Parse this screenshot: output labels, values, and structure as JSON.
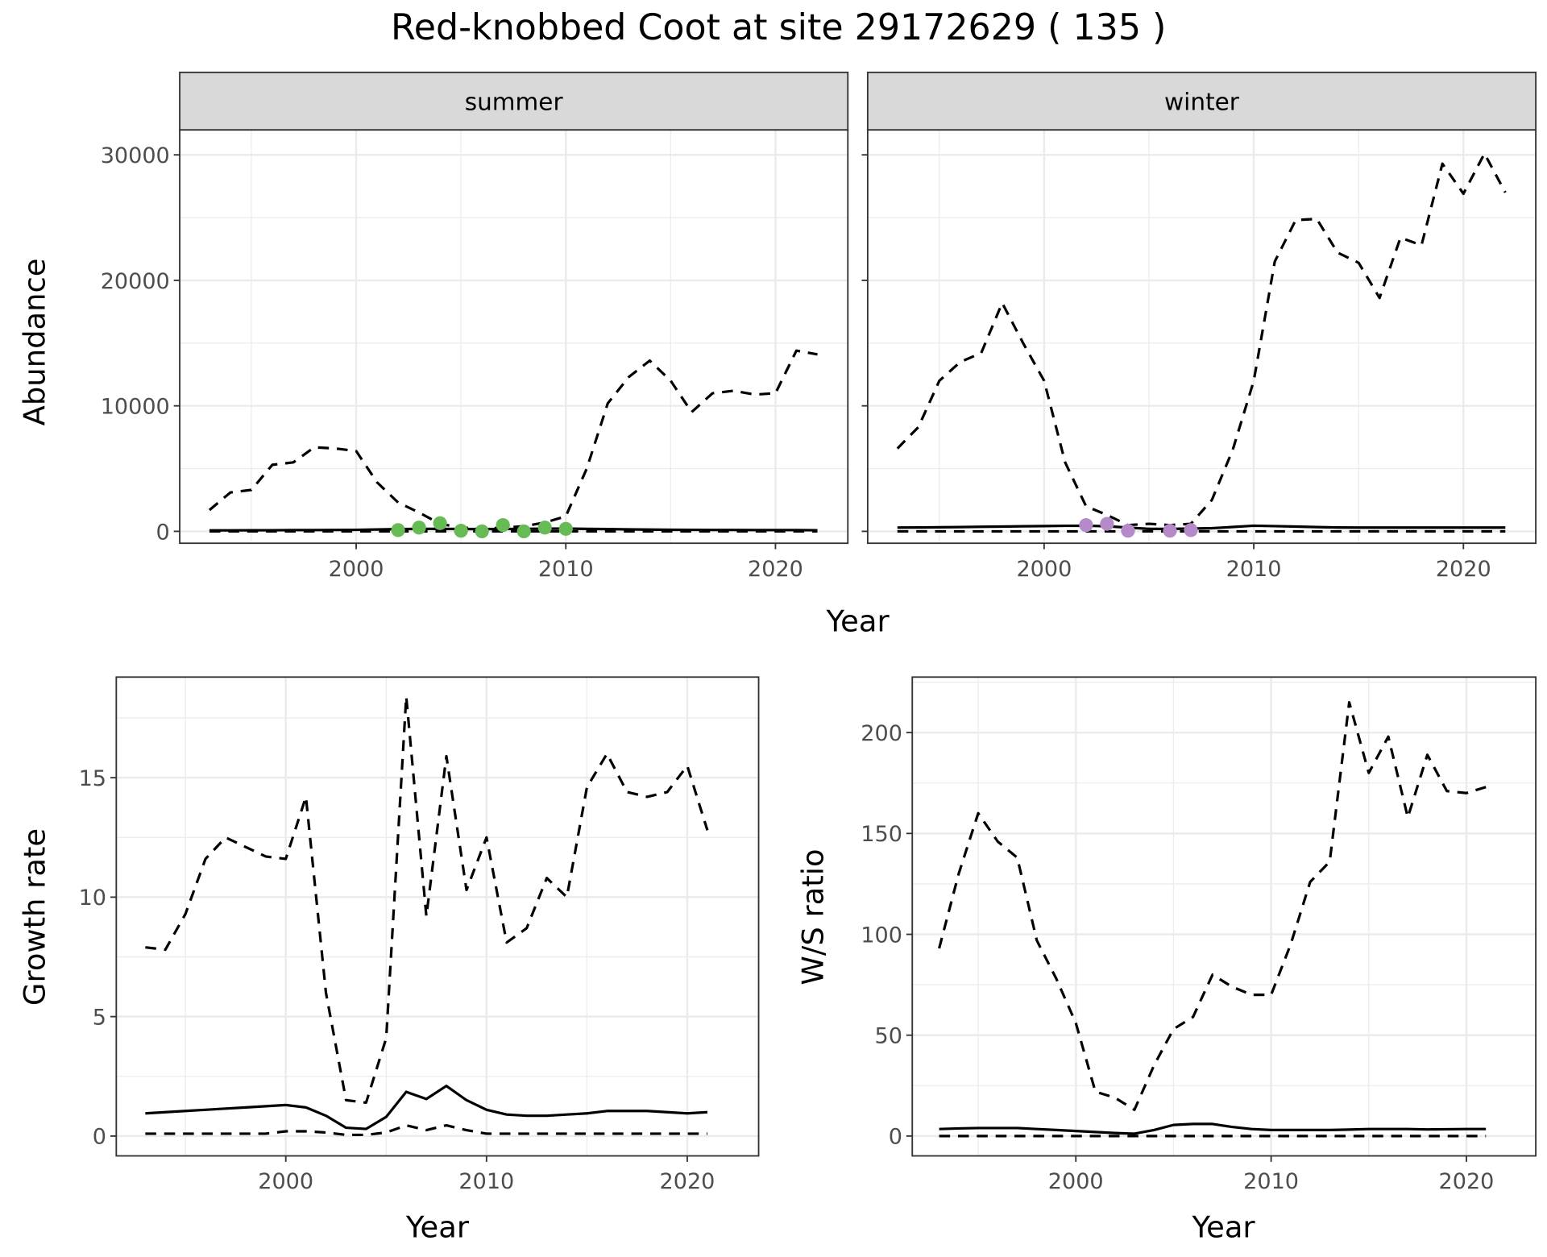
{
  "title": "Red-knobbed Coot at site 29172629 ( 135 )",
  "colors": {
    "summer_points": "#66bb55",
    "winter_points": "#b48ac8",
    "lines": "#000000",
    "strip": "#d9d9d9",
    "grid": "#ebebeb"
  },
  "chart_data": [
    {
      "type": "line",
      "facet": "summer",
      "xlabel": "Year",
      "ylabel": "Abundance",
      "xlim": [
        1993,
        2022
      ],
      "ylim": [
        0,
        30000
      ],
      "x_ticks": [
        2000,
        2010,
        2020
      ],
      "y_ticks": [
        0,
        10000,
        20000,
        30000
      ],
      "grid": true,
      "x": [
        1993,
        1994,
        1995,
        1996,
        1997,
        1998,
        1999,
        2000,
        2001,
        2002,
        2003,
        2004,
        2005,
        2006,
        2007,
        2008,
        2009,
        2010,
        2011,
        2012,
        2013,
        2014,
        2015,
        2016,
        2017,
        2018,
        2019,
        2020,
        2021,
        2022
      ],
      "series": [
        {
          "style": "dashed",
          "values": [
            1700,
            3100,
            3300,
            5300,
            5500,
            6700,
            6600,
            6400,
            3900,
            2300,
            1500,
            600,
            300,
            200,
            300,
            400,
            700,
            1200,
            5000,
            10200,
            12300,
            13600,
            12000,
            9500,
            11000,
            11200,
            10900,
            11000,
            14400,
            14100
          ]
        },
        {
          "style": "solid",
          "values": [
            80,
            80,
            90,
            90,
            100,
            100,
            110,
            120,
            150,
            180,
            200,
            200,
            190,
            180,
            190,
            200,
            210,
            220,
            200,
            180,
            160,
            140,
            130,
            120,
            110,
            110,
            100,
            100,
            100,
            90
          ]
        },
        {
          "style": "dashed",
          "values": [
            0,
            0,
            0,
            0,
            0,
            0,
            0,
            0,
            0,
            0,
            0,
            0,
            0,
            0,
            0,
            0,
            0,
            0,
            0,
            0,
            0,
            0,
            0,
            0,
            0,
            0,
            0,
            0,
            0,
            0
          ]
        }
      ],
      "points": {
        "x": [
          2002,
          2003,
          2004,
          2005,
          2006,
          2007,
          2008,
          2009,
          2010
        ],
        "y": [
          100,
          300,
          650,
          50,
          0,
          500,
          0,
          300,
          200
        ]
      }
    },
    {
      "type": "line",
      "facet": "winter",
      "xlabel": "Year",
      "ylabel": "Abundance",
      "xlim": [
        1993,
        2022
      ],
      "ylim": [
        0,
        30000
      ],
      "x_ticks": [
        2000,
        2010,
        2020
      ],
      "y_ticks": [
        0,
        10000,
        20000,
        30000
      ],
      "grid": true,
      "x": [
        1993,
        1994,
        1995,
        1996,
        1997,
        1998,
        1999,
        2000,
        2001,
        2002,
        2003,
        2004,
        2005,
        2006,
        2007,
        2008,
        2009,
        2010,
        2011,
        2012,
        2013,
        2014,
        2015,
        2016,
        2017,
        2018,
        2019,
        2020,
        2021,
        2022
      ],
      "series": [
        {
          "style": "dashed",
          "values": [
            6600,
            8300,
            12000,
            13500,
            14200,
            18200,
            15000,
            12000,
            5500,
            2000,
            1300,
            500,
            600,
            500,
            600,
            2500,
            6500,
            12000,
            21500,
            24800,
            24900,
            22200,
            21400,
            18600,
            23400,
            22800,
            29300,
            26900,
            30100,
            27000
          ]
        },
        {
          "style": "solid",
          "values": [
            300,
            310,
            320,
            340,
            360,
            380,
            400,
            420,
            440,
            450,
            400,
            300,
            200,
            200,
            220,
            250,
            350,
            450,
            420,
            380,
            340,
            310,
            300,
            300,
            300,
            300,
            300,
            300,
            300,
            300
          ]
        },
        {
          "style": "dashed",
          "values": [
            0,
            0,
            0,
            0,
            0,
            0,
            0,
            0,
            0,
            0,
            0,
            0,
            0,
            0,
            0,
            0,
            0,
            0,
            0,
            0,
            0,
            0,
            0,
            0,
            0,
            0,
            0,
            0,
            0,
            0
          ]
        }
      ],
      "points": {
        "x": [
          2002,
          2003,
          2004,
          2006,
          2007
        ],
        "y": [
          500,
          600,
          50,
          50,
          100
        ]
      }
    },
    {
      "type": "line",
      "xlabel": "Year",
      "ylabel": "Growth rate",
      "xlim": [
        1993,
        2021
      ],
      "ylim": [
        0,
        18.4
      ],
      "x_ticks": [
        2000,
        2010,
        2020
      ],
      "y_ticks": [
        0,
        5,
        10,
        15
      ],
      "grid": true,
      "x": [
        1993,
        1994,
        1995,
        1996,
        1997,
        1998,
        1999,
        2000,
        2001,
        2002,
        2003,
        2004,
        2005,
        2006,
        2007,
        2008,
        2009,
        2010,
        2011,
        2012,
        2013,
        2014,
        2015,
        2016,
        2017,
        2018,
        2019,
        2020,
        2021
      ],
      "series": [
        {
          "style": "dashed",
          "values": [
            7.9,
            7.8,
            9.3,
            11.6,
            12.5,
            12.1,
            11.7,
            11.6,
            14.2,
            6.0,
            1.5,
            1.4,
            4.1,
            18.4,
            9.2,
            15.9,
            10.3,
            12.5,
            8.1,
            8.7,
            10.8,
            10.0,
            14.6,
            16.0,
            14.4,
            14.2,
            14.4,
            15.5,
            12.8
          ]
        },
        {
          "style": "solid",
          "values": [
            0.95,
            1.0,
            1.05,
            1.1,
            1.15,
            1.2,
            1.25,
            1.3,
            1.2,
            0.85,
            0.35,
            0.3,
            0.8,
            1.85,
            1.55,
            2.1,
            1.5,
            1.1,
            0.9,
            0.85,
            0.85,
            0.9,
            0.95,
            1.05,
            1.05,
            1.05,
            1.0,
            0.95,
            1.0
          ]
        },
        {
          "style": "dashed",
          "values": [
            0.1,
            0.1,
            0.1,
            0.1,
            0.1,
            0.1,
            0.1,
            0.2,
            0.2,
            0.15,
            0.05,
            0.05,
            0.15,
            0.45,
            0.25,
            0.45,
            0.25,
            0.1,
            0.1,
            0.1,
            0.1,
            0.1,
            0.1,
            0.1,
            0.1,
            0.1,
            0.1,
            0.1,
            0.1
          ]
        }
      ]
    },
    {
      "type": "line",
      "xlabel": "Year",
      "ylabel": "W/S ratio",
      "xlim": [
        1993,
        2021
      ],
      "ylim": [
        0,
        215
      ],
      "x_ticks": [
        2000,
        2010,
        2020
      ],
      "y_ticks": [
        0,
        50,
        100,
        150,
        200
      ],
      "grid": true,
      "x": [
        1993,
        1994,
        1995,
        1996,
        1997,
        1998,
        1999,
        2000,
        2001,
        2002,
        2003,
        2004,
        2005,
        2006,
        2007,
        2008,
        2009,
        2010,
        2011,
        2012,
        2013,
        2014,
        2015,
        2016,
        2017,
        2018,
        2019,
        2020,
        2021
      ],
      "series": [
        {
          "style": "dashed",
          "values": [
            93,
            130,
            160,
            146,
            138,
            97,
            78,
            56,
            22,
            19,
            13,
            35,
            53,
            59,
            80,
            74,
            70,
            70,
            95,
            126,
            136,
            215,
            180,
            198,
            158,
            189,
            171,
            170,
            173
          ]
        },
        {
          "style": "solid",
          "values": [
            3.5,
            3.8,
            4,
            4,
            4,
            3.5,
            3,
            2.5,
            2,
            1.5,
            1.2,
            3,
            5.5,
            6,
            6,
            4.5,
            3.5,
            3,
            3,
            3,
            3,
            3.2,
            3.5,
            3.5,
            3.5,
            3.3,
            3.4,
            3.5,
            3.5
          ]
        },
        {
          "style": "dashed",
          "values": [
            0,
            0,
            0,
            0,
            0,
            0,
            0,
            0,
            0,
            0,
            0,
            0,
            0,
            0,
            0,
            0,
            0,
            0,
            0,
            0,
            0,
            0,
            0,
            0,
            0,
            0,
            0,
            0,
            0
          ]
        }
      ]
    }
  ]
}
